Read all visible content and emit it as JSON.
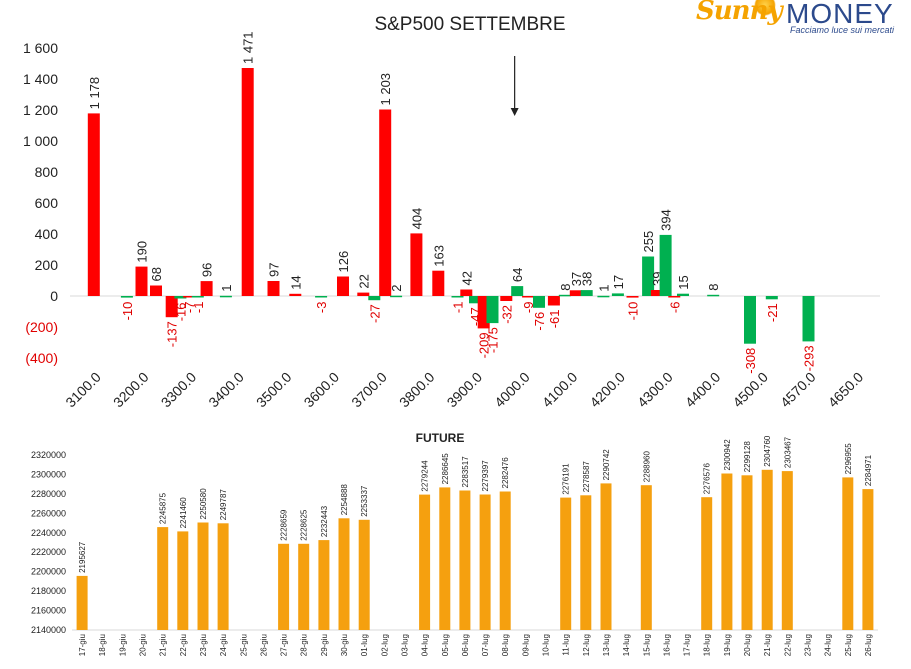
{
  "logo": {
    "brand": "Sunny",
    "money": "MONEY",
    "tagline": "Facciamo luce sui mercati"
  },
  "colors": {
    "call": "#ff0000",
    "put": "#00b050",
    "neg_label": "#e00000",
    "future": "#f5a00f"
  },
  "chart_data": [
    {
      "type": "bar",
      "title": "S&P500 SETTEMBRE",
      "xlabel": "",
      "ylabel": "",
      "ylim": [
        -400,
        1600
      ],
      "y_ticks": [
        "1 600",
        "1 400",
        "1 200",
        "1 000",
        "800",
        "600",
        "400",
        "200",
        "0",
        "(200)",
        "(400)"
      ],
      "y_tick_values": [
        1600,
        1400,
        1200,
        1000,
        800,
        600,
        400,
        200,
        0,
        -200,
        -400
      ],
      "x_ticks": [
        "3100.0",
        "3200.0",
        "3300.0",
        "3400.0",
        "3500.0",
        "3600.0",
        "3700.0",
        "3800.0",
        "3900.0",
        "4000.0",
        "4100.0",
        "4200.0",
        "4300.0",
        "4400.0",
        "4500.0",
        "4570.0",
        "4650.0"
      ],
      "grid": false,
      "legend": "none",
      "marker_strike": "4000.0",
      "series": [
        {
          "color": "red",
          "points": [
            {
              "strike": "3100.0",
              "value": 1178,
              "label": "1 178"
            },
            {
              "strike": "3200.0",
              "value": 190,
              "label": "190"
            },
            {
              "strike": "3200.0",
              "value": 68,
              "label": "68"
            },
            {
              "strike": "3300.0",
              "value": -137,
              "label": "-137"
            },
            {
              "strike": "3300.0",
              "value": -7,
              "label": "-7"
            },
            {
              "strike": "3300.0",
              "value": 96,
              "label": "96"
            },
            {
              "strike": "3400.0",
              "value": 1471,
              "label": "1 471"
            },
            {
              "strike": "3500.0",
              "value": 97,
              "label": "97"
            },
            {
              "strike": "3500.0",
              "value": 14,
              "label": "14"
            },
            {
              "strike": "3600.0",
              "value": 126,
              "label": "126"
            },
            {
              "strike": "3700.0",
              "value": 22,
              "label": "22"
            },
            {
              "strike": "3700.0",
              "value": 1203,
              "label": "1 203"
            },
            {
              "strike": "3800.0",
              "value": 404,
              "label": "404"
            },
            {
              "strike": "3800.0",
              "value": 163,
              "label": "163"
            },
            {
              "strike": "3900.0",
              "value": 42,
              "label": "42"
            },
            {
              "strike": "3900.0",
              "value": -209,
              "label": "-209"
            },
            {
              "strike": "4000.0",
              "value": -32,
              "label": "-32"
            },
            {
              "strike": "4000.0",
              "value": -9,
              "label": "-9"
            },
            {
              "strike": "4100.0",
              "value": -61,
              "label": "-61"
            },
            {
              "strike": "4100.0",
              "value": 37,
              "label": "37"
            },
            {
              "strike": "4200.0",
              "value": -10,
              "label": "-10"
            },
            {
              "strike": "4300.0",
              "value": 39,
              "label": "39"
            },
            {
              "strike": "4300.0",
              "value": -6,
              "label": "-6"
            }
          ]
        },
        {
          "color": "green",
          "points": [
            {
              "strike": "3200.0",
              "value": -10,
              "label": "-10"
            },
            {
              "strike": "3300.0",
              "value": -16,
              "label": "-16"
            },
            {
              "strike": "3300.0",
              "value": -1,
              "label": "-1"
            },
            {
              "strike": "3400.0",
              "value": 1,
              "label": "1"
            },
            {
              "strike": "3600.0",
              "value": -3,
              "label": "-3"
            },
            {
              "strike": "3700.0",
              "value": -27,
              "label": "-27"
            },
            {
              "strike": "3700.0",
              "value": 2,
              "label": "2"
            },
            {
              "strike": "3900.0",
              "value": -1,
              "label": "-1"
            },
            {
              "strike": "3900.0",
              "value": -47,
              "label": "-47"
            },
            {
              "strike": "3900.0",
              "value": -175,
              "label": "-175"
            },
            {
              "strike": "4000.0",
              "value": 64,
              "label": "64"
            },
            {
              "strike": "4000.0",
              "value": -76,
              "label": "-76"
            },
            {
              "strike": "4100.0",
              "value": 8,
              "label": "8"
            },
            {
              "strike": "4100.0",
              "value": 38,
              "label": "38"
            },
            {
              "strike": "4200.0",
              "value": 1,
              "label": "1"
            },
            {
              "strike": "4200.0",
              "value": 17,
              "label": "17"
            },
            {
              "strike": "4300.0",
              "value": 255,
              "label": "255"
            },
            {
              "strike": "4300.0",
              "value": 394,
              "label": "394"
            },
            {
              "strike": "4300.0",
              "value": 15,
              "label": "15"
            },
            {
              "strike": "4400.0",
              "value": 8,
              "label": "8"
            },
            {
              "strike": "4500.0",
              "value": -308,
              "label": "-308"
            },
            {
              "strike": "4500.0",
              "value": -21,
              "label": "-21"
            },
            {
              "strike": "4570.0",
              "value": -293,
              "label": "-293"
            }
          ]
        }
      ],
      "bars_order": [
        {
          "s": 0,
          "i": 0
        },
        {
          "s": 1,
          "i": 0
        },
        {
          "s": 0,
          "i": 1
        },
        {
          "s": 0,
          "i": 2
        },
        {
          "s": 0,
          "i": 3
        },
        {
          "s": 1,
          "i": 1
        },
        {
          "s": 0,
          "i": 4
        },
        {
          "s": 1,
          "i": 2
        },
        {
          "s": 0,
          "i": 5
        },
        {
          "s": 1,
          "i": 3
        },
        {
          "s": 0,
          "i": 6
        },
        {
          "s": 0,
          "i": 7
        },
        {
          "s": 0,
          "i": 8
        },
        {
          "s": 1,
          "i": 4
        },
        {
          "s": 0,
          "i": 9
        },
        {
          "s": 0,
          "i": 10
        },
        {
          "s": 1,
          "i": 5
        },
        {
          "s": 0,
          "i": 11
        },
        {
          "s": 1,
          "i": 6
        },
        {
          "s": 0,
          "i": 12
        },
        {
          "s": 0,
          "i": 13
        },
        {
          "s": 1,
          "i": 7
        },
        {
          "s": 0,
          "i": 14
        },
        {
          "s": 1,
          "i": 8
        },
        {
          "s": 0,
          "i": 15
        },
        {
          "s": 1,
          "i": 9
        },
        {
          "s": 0,
          "i": 16
        },
        {
          "s": 1,
          "i": 10
        },
        {
          "s": 0,
          "i": 17
        },
        {
          "s": 1,
          "i": 11
        },
        {
          "s": 0,
          "i": 18
        },
        {
          "s": 1,
          "i": 12
        },
        {
          "s": 0,
          "i": 19
        },
        {
          "s": 1,
          "i": 13
        },
        {
          "s": 1,
          "i": 14
        },
        {
          "s": 1,
          "i": 15
        },
        {
          "s": 0,
          "i": 20
        },
        {
          "s": 1,
          "i": 16
        },
        {
          "s": 0,
          "i": 21
        },
        {
          "s": 1,
          "i": 17
        },
        {
          "s": 0,
          "i": 22
        },
        {
          "s": 1,
          "i": 18
        },
        {
          "s": 1,
          "i": 19
        },
        {
          "s": 1,
          "i": 20
        },
        {
          "s": 1,
          "i": 21
        },
        {
          "s": 1,
          "i": 22
        }
      ]
    },
    {
      "type": "bar",
      "title": "FUTURE",
      "ylim": [
        2140000,
        2320000
      ],
      "y_ticks": [
        "2320000",
        "2300000",
        "2280000",
        "2260000",
        "2240000",
        "2220000",
        "2200000",
        "2180000",
        "2160000",
        "2140000"
      ],
      "grid": false,
      "legend": "none",
      "categories": [
        "17-giu",
        "18-giu",
        "19-giu",
        "20-giu",
        "21-giu",
        "22-giu",
        "23-giu",
        "24-giu",
        "25-giu",
        "26-giu",
        "27-giu",
        "28-giu",
        "29-giu",
        "30-giu",
        "01-lug",
        "02-lug",
        "03-lug",
        "04-lug",
        "05-lug",
        "06-lug",
        "07-lug",
        "08-lug",
        "09-lug",
        "10-lug",
        "11-lug",
        "12-lug",
        "13-lug",
        "14-lug",
        "15-lug",
        "16-lug",
        "17-lug",
        "18-lug",
        "19-lug",
        "20-lug",
        "21-lug",
        "22-lug",
        "23-lug",
        "24-lug",
        "25-lug",
        "26-lug"
      ],
      "values": [
        2195627,
        null,
        null,
        null,
        2245875,
        2241460,
        2250580,
        2249787,
        null,
        null,
        2228659,
        2228625,
        2232443,
        2254888,
        2253337,
        null,
        null,
        2279244,
        2286645,
        2283517,
        2279397,
        2282476,
        null,
        null,
        2276191,
        2278587,
        2290742,
        null,
        2288960,
        null,
        null,
        2276576,
        2300942,
        2299128,
        2304760,
        2303467,
        null,
        null,
        2296955,
        2284971
      ]
    }
  ]
}
